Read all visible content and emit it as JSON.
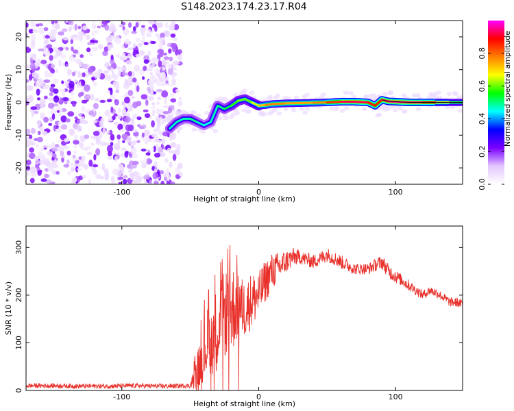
{
  "title": "S148.2023.174.23.17.R04",
  "chart_data": [
    {
      "type": "heatmap",
      "xlabel": "Height of straight line (km)",
      "ylabel": "Frequency (Hz)",
      "xlim": [
        -170,
        149
      ],
      "ylim": [
        -25,
        25
      ],
      "xticks": [
        -100,
        0,
        100
      ],
      "yticks": [
        -20,
        -10,
        0,
        10,
        20
      ],
      "colorbar": {
        "label": "Normalized spectral amplitude",
        "range": [
          0,
          1
        ],
        "ticks": [
          0.0,
          0.2,
          0.4,
          0.6,
          0.8
        ],
        "colormap": [
          "#ffffff",
          "#e3c8ff",
          "#7b00ff",
          "#0000ff",
          "#00ffff",
          "#00ff00",
          "#ffff00",
          "#ff8000",
          "#ff0000",
          "#ff00ff"
        ]
      },
      "ridge": {
        "x": [
          -65,
          -60,
          -55,
          -50,
          -45,
          -40,
          -35,
          -30,
          -25,
          -20,
          -15,
          -10,
          -5,
          0,
          5,
          10,
          20,
          30,
          40,
          50,
          60,
          70,
          80,
          85,
          90,
          95,
          100,
          110,
          120,
          130,
          140,
          149
        ],
        "freq": [
          -8,
          -6,
          -5,
          -5,
          -6,
          -7,
          -6,
          -1,
          -2,
          -1,
          0.5,
          1,
          0,
          -1,
          -0.8,
          -0.5,
          -0.3,
          -0.2,
          -0.1,
          0,
          0.2,
          0.2,
          0,
          -1,
          0.8,
          0.3,
          0.2,
          0,
          0,
          0,
          0,
          0
        ],
        "amplitude": [
          0.45,
          0.5,
          0.45,
          0.5,
          0.5,
          0.45,
          0.45,
          0.5,
          0.5,
          0.55,
          0.6,
          0.6,
          0.6,
          0.7,
          0.75,
          0.8,
          0.75,
          0.75,
          0.75,
          0.8,
          0.9,
          0.95,
          0.9,
          0.85,
          0.9,
          0.95,
          0.95,
          0.95,
          0.95,
          0.85,
          0.6,
          0.55
        ]
      },
      "noise_region_x": [
        -170,
        -57
      ]
    },
    {
      "type": "line",
      "xlabel": "Height of straight line (km)",
      "ylabel": "SNR (10 * v/v)",
      "xlim": [
        -170,
        149
      ],
      "ylim": [
        0,
        345
      ],
      "xticks": [
        -100,
        0,
        100
      ],
      "yticks": [
        0,
        100,
        200,
        300
      ],
      "line_color": "#e8302a",
      "series": [
        {
          "x": [
            -170,
            -150,
            -130,
            -110,
            -90,
            -70,
            -50,
            -45,
            -40,
            -35,
            -30,
            -25,
            -20,
            -15,
            -10,
            -5,
            0,
            5,
            10,
            15,
            20,
            25,
            30,
            40,
            50,
            60,
            70,
            80,
            90,
            95,
            100,
            105,
            110,
            115,
            120,
            125,
            130,
            135,
            140,
            145,
            149
          ],
          "y": [
            10,
            10,
            9,
            9,
            10,
            9,
            10,
            40,
            90,
            110,
            130,
            160,
            170,
            180,
            170,
            190,
            200,
            230,
            250,
            260,
            270,
            280,
            280,
            270,
            285,
            270,
            255,
            255,
            270,
            250,
            240,
            230,
            220,
            210,
            200,
            210,
            205,
            195,
            185,
            185,
            180
          ],
          "spread": [
            5,
            5,
            5,
            5,
            5,
            5,
            5,
            40,
            70,
            80,
            90,
            90,
            100,
            70,
            60,
            60,
            50,
            45,
            40,
            30,
            25,
            20,
            15,
            15,
            15,
            15,
            12,
            12,
            15,
            15,
            15,
            12,
            12,
            10,
            10,
            10,
            10,
            10,
            10,
            10,
            10
          ]
        }
      ]
    }
  ]
}
